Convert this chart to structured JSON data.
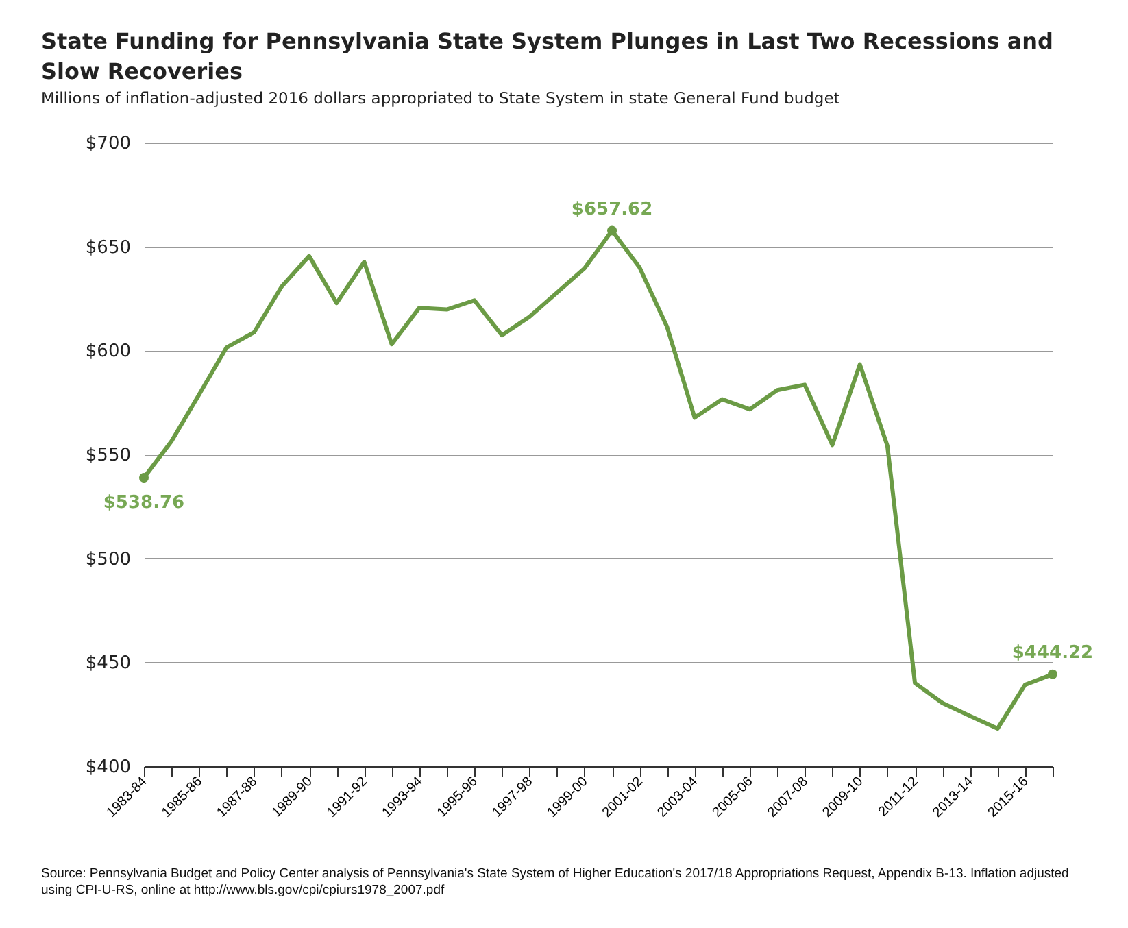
{
  "chart_data": {
    "type": "line",
    "title": "State Funding for Pennsylvania State System Plunges in Last Two Recessions and Slow Recoveries",
    "subtitle": "Millions of inflation-adjusted 2016 dollars appropriated to State System in state General Fund budget",
    "categories": [
      "1983-84",
      null,
      "1985-86",
      null,
      "1987-88",
      null,
      "1989-90",
      null,
      "1991-92",
      null,
      "1993-94",
      null,
      "1995-96",
      null,
      "1997-98",
      null,
      "1999-00",
      null,
      "2001-02",
      null,
      "2003-04",
      null,
      "2005-06",
      null,
      "2007-08",
      null,
      "2009-10",
      null,
      "2011-12",
      null,
      "2013-14",
      null,
      "2015-16",
      null
    ],
    "series": [
      {
        "color": "#6b9b45",
        "values": [
          538.76,
          556.3,
          578.7,
          601.4,
          608.7,
          630.7,
          645.4,
          622.8,
          642.6,
          603,
          620.5,
          619.7,
          624.1,
          607.3,
          616.2,
          627.8,
          639.5,
          657.62,
          639.9,
          611.3,
          567.7,
          576.5,
          571.7,
          580.9,
          583.5,
          554.5,
          593.3,
          554.1,
          440,
          430.4,
          424.2,
          418.1,
          439.2,
          444.22
        ]
      }
    ],
    "ylim": [
      400,
      700
    ],
    "yticks": [
      {
        "value": 400,
        "label": "$400"
      },
      {
        "value": 450,
        "label": "$450"
      },
      {
        "value": 500,
        "label": "$500"
      },
      {
        "value": 550,
        "label": "$550"
      },
      {
        "value": 600,
        "label": "$600"
      },
      {
        "value": 650,
        "label": "$650"
      },
      {
        "value": 700,
        "label": "$700"
      }
    ],
    "grid": "y",
    "marker": "none",
    "line_style": "solid",
    "annotations": [
      {
        "text": "$538.76",
        "x": "1983-84",
        "y": 538.76
      },
      {
        "text": "$657.62",
        "y": 657.62
      },
      {
        "text": "$444.22",
        "y": 444.22
      },
      "Source: Pennsylvania Budget and Policy Center analysis of Pennsylvania's State System of Higher Education's 2017/18 Appropriations Request, Appendix B-13. Inflation adjusted using CPI-U-RS, online at http://www.bls.gov/cpi/cpiurs1978_2007.pdf"
    ]
  }
}
